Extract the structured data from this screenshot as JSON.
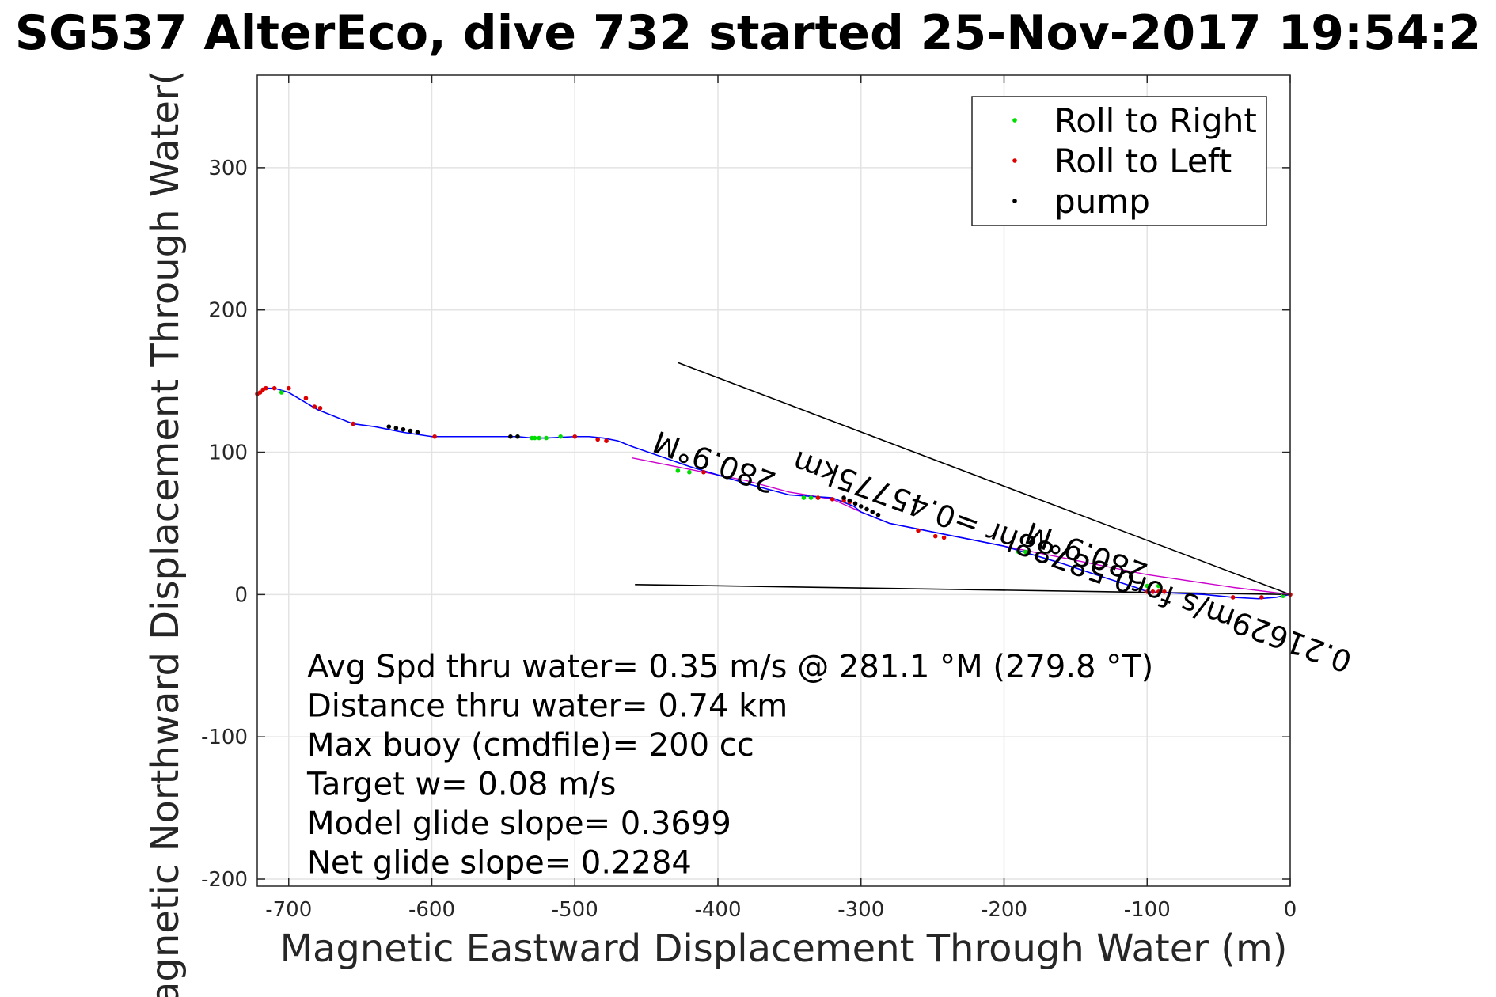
{
  "chart_data": {
    "type": "scatter",
    "title": "SG537 AlterEco, dive 732 started 25-Nov-2017 19:54:2",
    "xlabel": "Magnetic Eastward Displacement Through Water (m)",
    "ylabel": "Magnetic Northward Displacement Through Water(",
    "xlim": [
      -722,
      0
    ],
    "ylim": [
      -205,
      365
    ],
    "xticks": [
      -700,
      -600,
      -500,
      -400,
      -300,
      -200,
      -100,
      0
    ],
    "yticks": [
      -200,
      -100,
      0,
      100,
      200,
      300
    ],
    "grid": true,
    "legend_position": "top-right",
    "legend": [
      {
        "label": "Roll to Right",
        "color": "#00dd00"
      },
      {
        "label": "Roll to Left",
        "color": "#dd0000"
      },
      {
        "label": "pump",
        "color": "#000000"
      }
    ],
    "track": {
      "name": "",
      "color": "#0000ff",
      "x": [
        0,
        -10,
        -22,
        -40,
        -60,
        -80,
        -100,
        -108,
        -130,
        -160,
        -200,
        -240,
        -280,
        -300,
        -305,
        -320,
        -350,
        -380,
        -400,
        -420,
        -440,
        -460,
        -470,
        -480,
        -490,
        -500,
        -520,
        -530,
        -540,
        -560,
        -600,
        -620,
        -640,
        -655,
        -680,
        -690,
        -700,
        -710,
        -716,
        -719,
        -722
      ],
      "y": [
        0,
        -2,
        -3,
        -2,
        0,
        1,
        2,
        5,
        12,
        22,
        34,
        42,
        50,
        58,
        62,
        68,
        70,
        78,
        84,
        90,
        97,
        104,
        108,
        110,
        111,
        111,
        110,
        110,
        111,
        111,
        111,
        114,
        118,
        120,
        130,
        136,
        142,
        145,
        145,
        143,
        141
      ]
    },
    "glide_track": {
      "color": "#cc00cc",
      "x": [
        0,
        -40,
        -100,
        -160,
        -200,
        -240,
        -280,
        -300,
        -320,
        -350,
        -380,
        -420,
        -460
      ],
      "y": [
        0,
        5,
        14,
        26,
        34,
        42,
        50,
        58,
        67,
        72,
        80,
        88,
        96
      ]
    },
    "roll_right_points": {
      "x": [
        -530,
        -528,
        -525,
        -520,
        -510,
        -340,
        -335,
        -330,
        -428,
        -420,
        -190,
        -185,
        -100,
        -92,
        -705,
        -5,
        -540
      ],
      "y": [
        110,
        110,
        110,
        110,
        111,
        68,
        68,
        68,
        87,
        86,
        30,
        30,
        6,
        6,
        142,
        -1,
        111
      ]
    },
    "roll_left_points": {
      "x": [
        -722,
        -720,
        -718,
        -716,
        -710,
        -700,
        -688,
        -682,
        -678,
        -655,
        -598,
        -500,
        -484,
        -478,
        -410,
        -330,
        -320,
        -312,
        -308,
        -260,
        -248,
        -242,
        -100,
        -96,
        -92,
        -88,
        -40,
        -20,
        0
      ],
      "y": [
        141,
        142,
        144,
        145,
        145,
        145,
        138,
        132,
        131,
        120,
        111,
        111,
        109,
        108,
        86,
        68,
        67,
        66,
        65,
        45,
        41,
        40,
        2,
        2,
        2,
        2,
        -2,
        -2,
        0
      ]
    },
    "pump_points": {
      "x": [
        -630,
        -625,
        -620,
        -615,
        -610,
        -545,
        -540,
        -312,
        -308,
        -304,
        -300,
        -296,
        -292,
        -288
      ],
      "y": [
        118,
        117,
        116,
        115,
        114,
        111,
        111,
        68,
        66,
        64,
        62,
        60,
        58,
        56
      ]
    },
    "reference_lines": [
      {
        "x": [
          0,
          -428
        ],
        "y": [
          0,
          163
        ]
      },
      {
        "x": [
          0,
          -458
        ],
        "y": [
          0,
          7
        ]
      }
    ],
    "annotations": [
      {
        "text": "280.9°M",
        "x": -400,
        "y": 100,
        "rotation": 200
      },
      {
        "text": "0.21629m/s for0.58788hr =0.45775km",
        "x": -150,
        "y": 30,
        "rotation": 200
      },
      {
        "text": "280.9°M",
        "x": -140,
        "y": 36,
        "rotation": 200
      }
    ],
    "stats": [
      "Avg Spd thru water=  0.35 m/s @ 281.1 °M (279.8 °T)",
      "Distance thru water=  0.74 km",
      "Max buoy (cmdfile)= 200 cc",
      "Target w= 0.08 m/s",
      "Model glide slope= 0.3699",
      "Net glide slope= 0.2284"
    ]
  }
}
